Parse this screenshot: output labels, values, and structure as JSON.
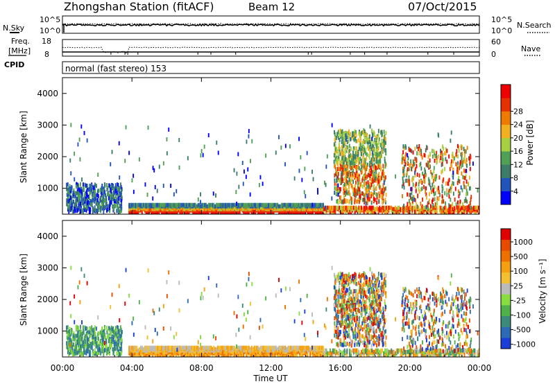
{
  "header": {
    "station": "Zhongshan Station (fitACF)",
    "beam": "Beam 12",
    "date": "07/Oct/2015"
  },
  "noise_panel": {
    "left_label": "N.Sky",
    "right_label": "N.Search",
    "left_ticks": [
      "10^5",
      "10^0"
    ],
    "right_ticks": [
      "10^5",
      "10^0"
    ]
  },
  "freq_panel": {
    "left_label_1": "Freq.",
    "left_label_2": "[MHz]",
    "cpid_label": "CPID",
    "right_label": "Nave",
    "left_ticks": [
      "18",
      "8"
    ],
    "right_ticks": [
      "60",
      "0"
    ]
  },
  "mode_text": "normal (fast stereo) 153",
  "chart_data": [
    {
      "type": "heatmap",
      "name": "power",
      "ylabel": "Slant Range [km]",
      "yticks": [
        "1000",
        "2000",
        "3000",
        "4000"
      ],
      "ylim": [
        180,
        4500
      ],
      "xticks": [
        "00:00",
        "04:00",
        "08:00",
        "12:00",
        "16:00",
        "20:00",
        "00:00"
      ],
      "xlim_hours": [
        0,
        24
      ],
      "colorbar": {
        "label": "Power [dB]",
        "ticks": [
          "4",
          "8",
          "12",
          "16",
          "20",
          "24",
          "28"
        ],
        "colors": [
          "#0000ff",
          "#2255bb",
          "#3b7d6a",
          "#4f9f55",
          "#a6d040",
          "#f0b020",
          "#ee7a00",
          "#e63000",
          "#ee0000"
        ]
      },
      "features": [
        {
          "hours": [
            3.8,
            15.0
          ],
          "range_km": [
            300,
            550
          ],
          "level": "strong"
        },
        {
          "hours": [
            15.6,
            18.6
          ],
          "range_km": [
            600,
            2800
          ],
          "level": "mixed"
        },
        {
          "hours": [
            0.2,
            3.4
          ],
          "range_km": [
            400,
            1200
          ],
          "level": "weak"
        }
      ]
    },
    {
      "type": "heatmap",
      "name": "velocity",
      "ylabel": "Slant Range [km]",
      "yticks": [
        "1000",
        "2000",
        "3000",
        "4000"
      ],
      "ylim": [
        180,
        4500
      ],
      "xticks": [
        "00:00",
        "04:00",
        "08:00",
        "12:00",
        "16:00",
        "20:00",
        "00:00"
      ],
      "xlim_hours": [
        0,
        24
      ],
      "xlabel": "Time UT",
      "colorbar": {
        "label": "Velocity [m s⁻¹]",
        "ticks": [
          "1000",
          "500",
          "100",
          "25",
          "-25",
          "-100",
          "-500",
          "-1000"
        ],
        "colors": [
          "#1a3ed6",
          "#2d6bb5",
          "#3b8a7a",
          "#50b04a",
          "#88dd40",
          "#bbbbbb",
          "#f2c030",
          "#f5a010",
          "#ee7000",
          "#e84a00",
          "#e00000"
        ]
      },
      "features": [
        {
          "hours": [
            3.8,
            15.0
          ],
          "range_km": [
            250,
            700
          ],
          "level": "negative"
        },
        {
          "hours": [
            15.6,
            18.6
          ],
          "range_km": [
            600,
            2800
          ],
          "level": "mixed"
        }
      ]
    }
  ]
}
